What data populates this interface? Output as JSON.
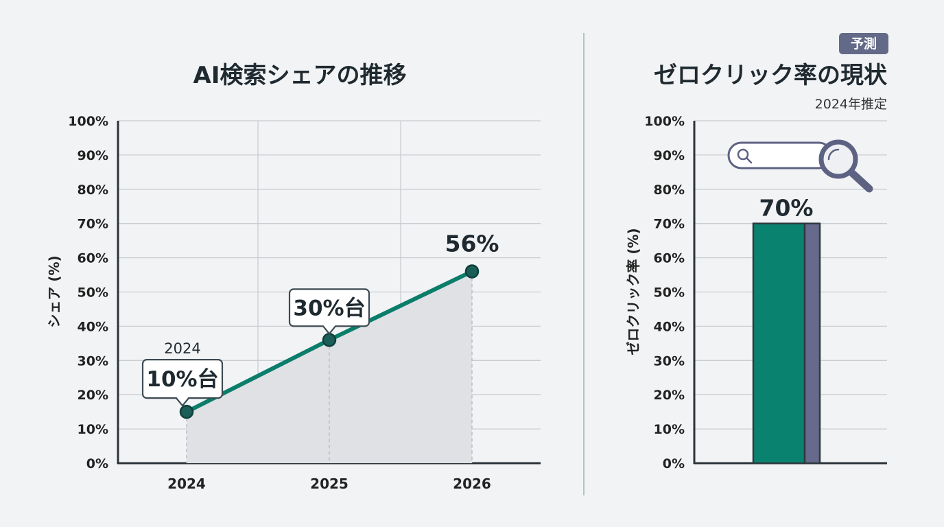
{
  "chart_data": [
    {
      "type": "line",
      "title": "AI検索シェアの推移",
      "xlabel": "",
      "ylabel": "シェア (%)",
      "ylim": [
        0,
        100
      ],
      "y_ticks": [
        "0%",
        "10%",
        "20%",
        "30%",
        "40%",
        "50%",
        "60%",
        "70%",
        "80%",
        "90%",
        "100%"
      ],
      "categories": [
        "2024",
        "2025",
        "2026"
      ],
      "values": [
        15,
        36,
        56
      ],
      "area_fill": true,
      "grid": true,
      "annotations": [
        {
          "x": "2024",
          "pre_label": "2024",
          "label": "10%台"
        },
        {
          "x": "2025",
          "label": "30%台"
        },
        {
          "x": "2026",
          "label": "56%"
        }
      ]
    },
    {
      "type": "bar",
      "title": "ゼロクリック率の現状",
      "subtitle": "2024年推定",
      "badge": "予測",
      "xlabel": "",
      "ylabel": "ゼロクリック率 (%)",
      "ylim": [
        0,
        100
      ],
      "y_ticks": [
        "0%",
        "10%",
        "20%",
        "30%",
        "40%",
        "50%",
        "60%",
        "70%",
        "80%",
        "90%",
        "100%"
      ],
      "values": [
        70
      ],
      "value_label": "70%",
      "grid": true
    }
  ],
  "colors": {
    "line": "#0b7d6b",
    "marker": "#1b5e57",
    "area": "#dfe1e5",
    "bar_main": "#0a8270",
    "bar_side": "#676a8c",
    "badge": "#636a88",
    "divider": "#a8c8c0"
  },
  "icons": [
    "search-bar-icon",
    "magnifier-icon"
  ]
}
